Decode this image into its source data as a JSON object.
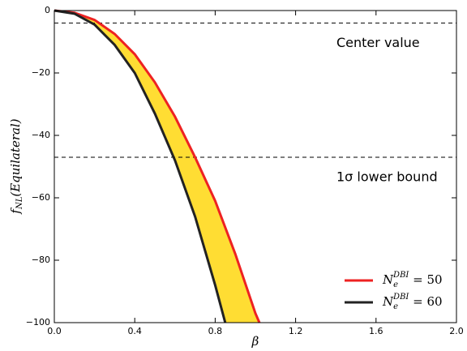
{
  "chart_data": {
    "type": "line",
    "xlabel": "β",
    "ylabel": "fNL(Equilateral)",
    "xlim": [
      0,
      2.0
    ],
    "ylim": [
      -100,
      0
    ],
    "xticks": [
      {
        "value": 0,
        "label": "0.0"
      },
      0.4,
      0.8,
      1.2,
      1.6,
      {
        "value": 2.0,
        "label": "2.0"
      }
    ],
    "yticks": [
      0,
      {
        "value": -20,
        "label": "−20"
      },
      {
        "value": -40,
        "label": "−40"
      },
      {
        "value": -60,
        "label": "−60"
      },
      {
        "value": -80,
        "label": "−80"
      },
      {
        "value": -100,
        "label": "−100"
      }
    ],
    "fill_between": true,
    "fill_color": "#ffdd33",
    "legend": "lower right",
    "series": [
      {
        "name": "NeDBI = 50",
        "color": "#ee2222",
        "x": [
          0,
          0.1,
          0.2,
          0.3,
          0.4,
          0.5,
          0.6,
          0.7,
          0.8,
          0.9,
          1.0,
          1.02
        ],
        "values": [
          0,
          -0.7,
          -3,
          -7.5,
          -14,
          -23,
          -34,
          -47,
          -61,
          -78,
          -97,
          -100
        ]
      },
      {
        "name": "NeDBI = 60",
        "color": "#222222",
        "x": [
          0,
          0.1,
          0.2,
          0.3,
          0.4,
          0.5,
          0.6,
          0.7,
          0.8,
          0.85
        ],
        "values": [
          0,
          -1,
          -4.5,
          -11,
          -20,
          -33,
          -48,
          -66,
          -88,
          -100
        ]
      }
    ],
    "reference_lines": [
      {
        "value": -4,
        "label": "Center value"
      },
      {
        "value": -47,
        "label": "1σ lower bound"
      }
    ]
  }
}
